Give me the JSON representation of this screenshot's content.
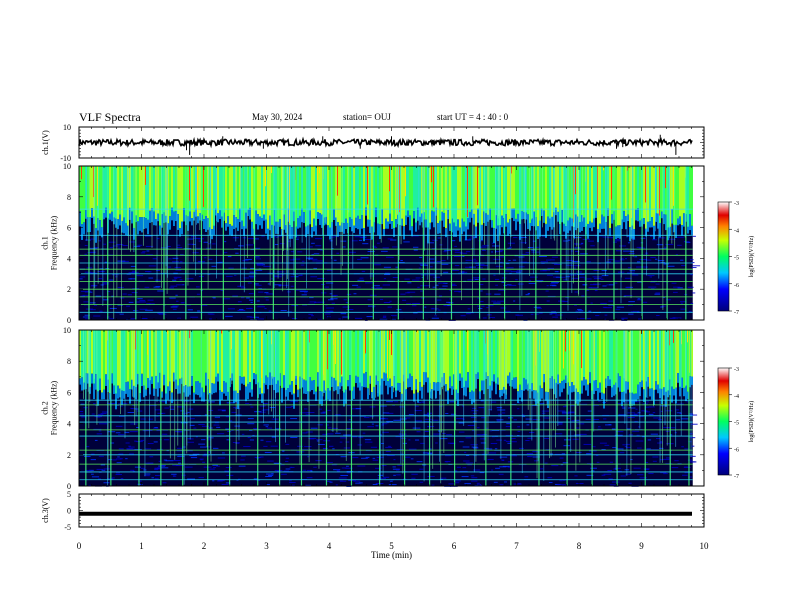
{
  "header": {
    "title": "VLF Spectra",
    "date": "May 30, 2024",
    "station": "station= OUJ",
    "start": "start  UT =   4 : 40 : 0"
  },
  "chart_data": [
    {
      "type": "line",
      "ylabel": "ch.1(V)",
      "ylim": [
        -10,
        10
      ],
      "yticks": [
        10,
        -10
      ],
      "xlim": [
        0,
        10
      ],
      "baseline_v": 0,
      "noise_amplitude_v": 2,
      "spikes": [
        {
          "t": 1.72,
          "v": -5
        },
        {
          "t": 1.77,
          "v": -8
        },
        {
          "t": 2.3,
          "v": 4
        },
        {
          "t": 2.95,
          "v": -4
        },
        {
          "t": 3.9,
          "v": 4
        },
        {
          "t": 4.5,
          "v": -4
        },
        {
          "t": 5.0,
          "v": 4
        },
        {
          "t": 6.3,
          "v": 4
        },
        {
          "t": 8.6,
          "v": -4
        },
        {
          "t": 8.7,
          "v": -3
        },
        {
          "t": 9.3,
          "v": 5
        },
        {
          "t": 9.55,
          "v": -8
        }
      ]
    },
    {
      "type": "heatmap",
      "channel": "ch.1",
      "ylabel": "ch.1\nFrequency (kHz)",
      "ylim": [
        0,
        10
      ],
      "yticks": [
        0,
        2,
        4,
        6,
        8,
        10
      ],
      "xlim": [
        0,
        9.82
      ],
      "colorbar": {
        "label": "log(PSD)(V²/Hz)",
        "range": [
          -7,
          -3
        ],
        "ticks": [
          -3,
          -4,
          -5,
          -6,
          -7
        ]
      },
      "green_band_top_khz": 6.5,
      "lines_khz": [
        0.5,
        1.0,
        1.5,
        2.0,
        2.5,
        3.0,
        3.3,
        3.7,
        4.2,
        4.6,
        5.5,
        7.2
      ],
      "bursts_min": [
        0.15,
        0.45,
        0.9,
        1.35,
        1.7,
        1.95,
        2.3,
        2.8,
        3.1,
        3.45,
        3.9,
        4.3,
        4.7,
        5.1,
        5.5,
        5.95,
        6.4,
        6.8,
        7.3,
        7.7,
        8.1,
        8.55,
        9.0,
        9.4,
        9.7
      ]
    },
    {
      "type": "heatmap",
      "channel": "ch.2",
      "ylabel": "ch.2\nFrequency (kHz)",
      "ylim": [
        0,
        10
      ],
      "yticks": [
        0,
        2,
        4,
        6,
        8,
        10
      ],
      "xlim": [
        0,
        9.82
      ],
      "colorbar": {
        "label": "log(PSD)(V²/Hz)",
        "range": [
          -7,
          -3
        ],
        "ticks": [
          -3,
          -4,
          -5,
          -6,
          -7
        ]
      },
      "green_band_top_khz": 6.5,
      "lines_khz": [
        0.4,
        0.9,
        1.4,
        2.0,
        2.3,
        3.2,
        3.6,
        4.1,
        4.5,
        5.2,
        5.5
      ],
      "bursts_min": [
        0.1,
        0.5,
        0.95,
        1.3,
        1.65,
        2.05,
        2.4,
        2.85,
        3.2,
        3.55,
        3.95,
        4.35,
        4.8,
        5.2,
        5.6,
        6.0,
        6.5,
        6.9,
        7.35,
        7.8,
        8.2,
        8.6,
        9.05,
        9.45,
        9.75
      ]
    },
    {
      "type": "line",
      "ylabel": "ch.3(V)",
      "ylim": [
        -5,
        5
      ],
      "yticks": [
        5,
        0,
        -5
      ],
      "xlim": [
        0,
        10
      ],
      "baseline_v": -1,
      "xlabel": "Time  (min)",
      "xticks": [
        0,
        1,
        2,
        3,
        4,
        5,
        6,
        7,
        8,
        9,
        10
      ]
    }
  ]
}
